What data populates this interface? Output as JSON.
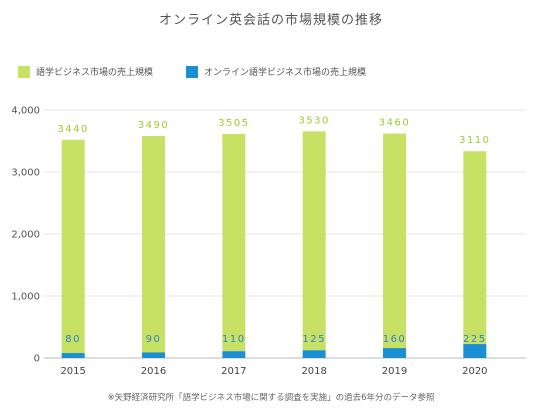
{
  "chart_data": {
    "type": "bar",
    "title": "オンライン英会話の市場規模の推移",
    "categories": [
      "2015",
      "2016",
      "2017",
      "2018",
      "2019",
      "2020"
    ],
    "series": [
      {
        "name": "語学ビジネス市場の売上規模",
        "color": "#c6e164",
        "values": [
          3440,
          3490,
          3505,
          3530,
          3460,
          3110
        ]
      },
      {
        "name": "オンライン語学ビジネス市場の売上規模",
        "color": "#1a8fd3",
        "values": [
          80,
          90,
          110,
          125,
          160,
          225
        ]
      }
    ],
    "yticks": [
      "0",
      "1,000",
      "2,000",
      "3,000",
      "4,000"
    ],
    "ylim": [
      0,
      4000
    ],
    "grid": true,
    "legend": "top-left",
    "note": "※矢野経済研究所「語学ビジネス市場に関する調査を実施」の過去6年分のデータ参照"
  }
}
